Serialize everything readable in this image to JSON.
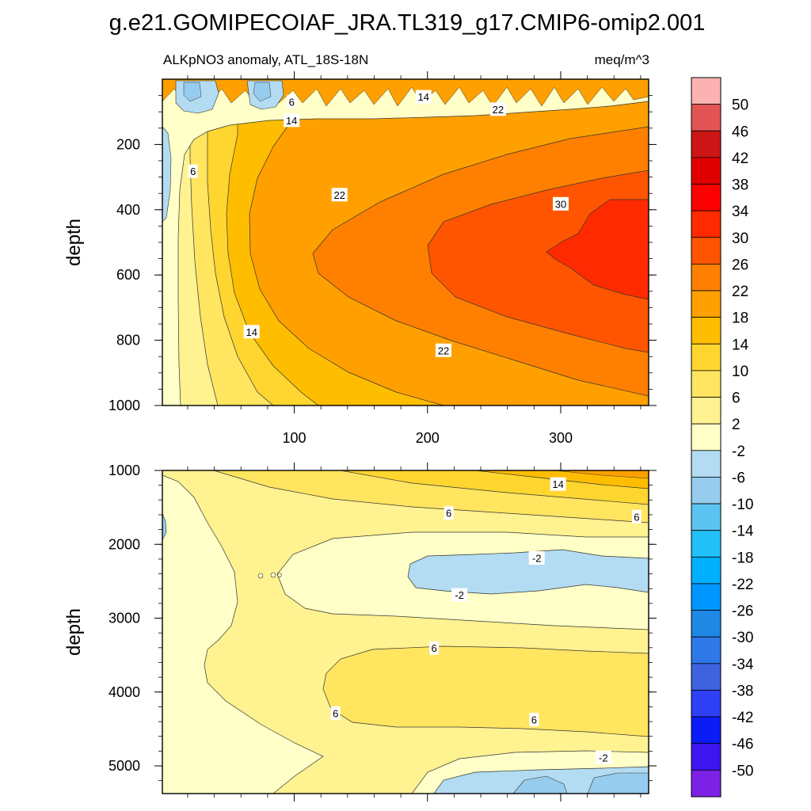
{
  "title": "g.e21.GOMIPECOIAF_JRA.TL319_g17.CMIP6-omip2.001",
  "chart_data": [
    {
      "type": "contour",
      "panel": "upper",
      "subtitle_left": "ALKpNO3 anomaly, ATL_18S-18N",
      "subtitle_right": "meq/m^3",
      "ylabel": "depth",
      "xlim": [
        1,
        366
      ],
      "ylim": [
        0,
        1000
      ],
      "y_reversed": true,
      "xticks": [
        "100",
        "200",
        "300"
      ],
      "yticks": [
        "200",
        "400",
        "600",
        "800",
        "1000"
      ],
      "contour_labels": [
        {
          "text": "6",
          "x": 98,
          "y": 70
        },
        {
          "text": "14",
          "x": 197,
          "y": 55
        },
        {
          "text": "22",
          "x": 253,
          "y": 93
        },
        {
          "text": "14",
          "x": 98,
          "y": 127
        },
        {
          "text": "6",
          "x": 24,
          "y": 283
        },
        {
          "text": "22",
          "x": 134,
          "y": 355
        },
        {
          "text": "30",
          "x": 300,
          "y": 383
        },
        {
          "text": "14",
          "x": 68,
          "y": 775
        },
        {
          "text": "22",
          "x": 212,
          "y": 832
        }
      ]
    },
    {
      "type": "contour",
      "panel": "lower",
      "ylabel": "depth",
      "xlim": [
        1,
        366
      ],
      "ylim": [
        1000,
        5375
      ],
      "y_reversed": true,
      "yticks": [
        "1000",
        "2000",
        "3000",
        "4000",
        "5000"
      ],
      "contour_labels": [
        {
          "text": "14",
          "x": 298,
          "y": 1190
        },
        {
          "text": "6",
          "x": 216,
          "y": 1580
        },
        {
          "text": "6",
          "x": 357,
          "y": 1630
        },
        {
          "text": "-2",
          "x": 282,
          "y": 2190
        },
        {
          "text": "-2",
          "x": 224,
          "y": 2690
        },
        {
          "text": "6",
          "x": 205,
          "y": 3410
        },
        {
          "text": "6",
          "x": 131,
          "y": 4290
        },
        {
          "text": "6",
          "x": 280,
          "y": 4380
        },
        {
          "text": "-2",
          "x": 332,
          "y": 4890
        }
      ]
    }
  ],
  "colorbar": {
    "labels": [
      "50",
      "46",
      "42",
      "38",
      "34",
      "30",
      "26",
      "22",
      "18",
      "14",
      "10",
      "6",
      "2",
      "-2",
      "-6",
      "-10",
      "-14",
      "-18",
      "-22",
      "-26",
      "-30",
      "-34",
      "-38",
      "-42",
      "-46",
      "-50"
    ],
    "colors": [
      "#fcb2b2",
      "#e35454",
      "#cc1515",
      "#e00000",
      "#ff0000",
      "#ff2a00",
      "#ff5500",
      "#ff8000",
      "#ffa000",
      "#ffbd00",
      "#ffd630",
      "#ffe560",
      "#fff291",
      "#ffffc7",
      "#b3dcf2",
      "#96cced",
      "#5cc4f0",
      "#21c0f7",
      "#00b0ff",
      "#0096ff",
      "#1e88e5",
      "#2f78e8",
      "#3e62e0",
      "#2e3ff5",
      "#0a1cf7",
      "#3d15f0",
      "#7b22e6"
    ]
  }
}
